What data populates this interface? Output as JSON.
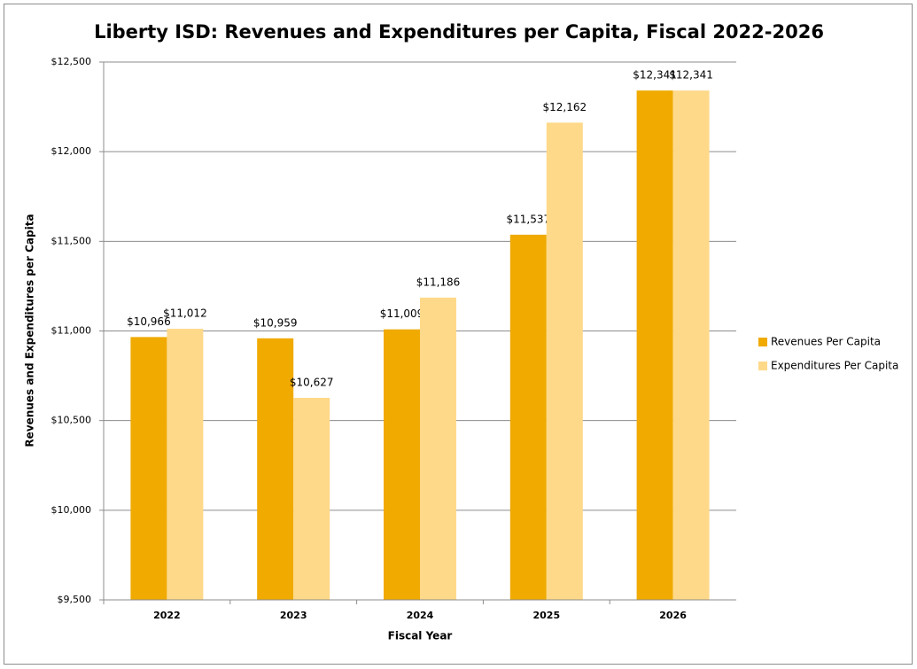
{
  "chart_data": {
    "type": "bar",
    "title": "Liberty ISD: Revenues and Expenditures per Capita, Fiscal 2022-2026",
    "x_label": "Fiscal Year",
    "y_label": "Revenues and Expenditures per Capita",
    "categories": [
      "2022",
      "2023",
      "2024",
      "2025",
      "2026"
    ],
    "series": [
      {
        "name": "Revenues Per Capita",
        "color": "#f0aa00",
        "values": [
          10966,
          10959,
          11009,
          11537,
          12341
        ],
        "value_labels": [
          "$10,966",
          "$10,959",
          "$11,009",
          "$11,537",
          "$12,341"
        ]
      },
      {
        "name": "Expenditures Per Capita",
        "color": "#ffd98a",
        "values": [
          11012,
          10627,
          11186,
          12162,
          12341
        ],
        "value_labels": [
          "$11,012",
          "$10,627",
          "$11,186",
          "$12,162",
          "$12,341"
        ]
      }
    ],
    "ylim": [
      9500,
      12500
    ],
    "yticks": [
      {
        "value": 9500,
        "label": "$9,500"
      },
      {
        "value": 10000,
        "label": "$10,000"
      },
      {
        "value": 10500,
        "label": "$10,500"
      },
      {
        "value": 11000,
        "label": "$11,000"
      },
      {
        "value": 11500,
        "label": "$11,500"
      },
      {
        "value": 12000,
        "label": "$12,000"
      },
      {
        "value": 12500,
        "label": "$12,500"
      }
    ],
    "grid": true,
    "legend": "right"
  }
}
